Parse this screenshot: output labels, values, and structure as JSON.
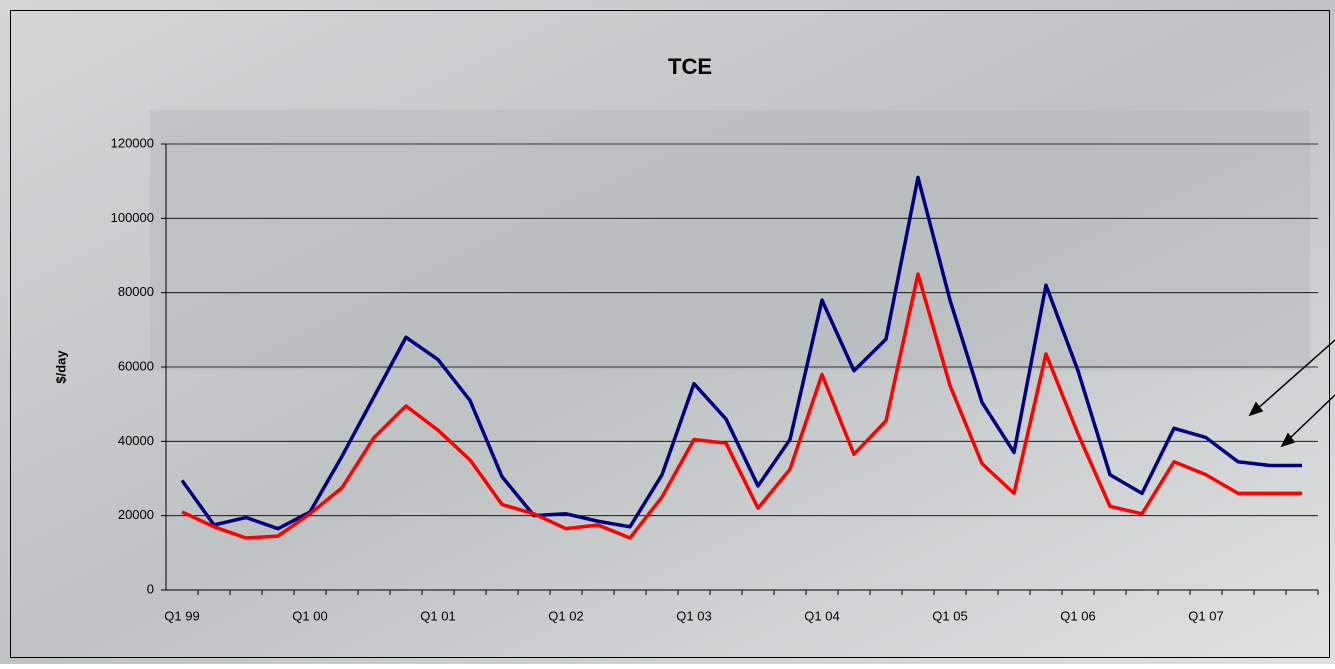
{
  "chart_data": {
    "type": "line",
    "title": "TCE",
    "y_label": "$/day",
    "categories": [
      "Q1 99",
      null,
      null,
      null,
      "Q1 00",
      null,
      null,
      null,
      "Q1 01",
      null,
      null,
      null,
      "Q1 02",
      null,
      null,
      null,
      "Q1 03",
      null,
      null,
      null,
      "Q1 04",
      null,
      null,
      null,
      "Q1 05",
      null,
      null,
      null,
      "Q1 06",
      null,
      null,
      null,
      "Q1 07",
      null,
      null,
      null
    ],
    "series": [
      {
        "color": "#000080",
        "values": [
          29500,
          17500,
          19500,
          16500,
          21000,
          36000,
          52000,
          68000,
          62000,
          51000,
          30500,
          20000,
          20500,
          18500,
          17000,
          31000,
          55500,
          46000,
          28000,
          40500,
          78000,
          59000,
          67500,
          111000,
          78000,
          50500,
          37000,
          82000,
          59000,
          31000,
          26000,
          43500,
          41000,
          34500,
          33500,
          33500
        ]
      },
      {
        "color": "#ff0000",
        "values": [
          21000,
          17000,
          14000,
          14500,
          20500,
          27500,
          41000,
          49500,
          43000,
          35000,
          23000,
          20500,
          16500,
          17500,
          14000,
          25000,
          40500,
          39500,
          22000,
          32500,
          58000,
          36500,
          45500,
          85000,
          55000,
          34000,
          26000,
          63500,
          42000,
          22500,
          20500,
          34500,
          31000,
          26000,
          26000,
          26000
        ]
      }
    ],
    "ylim": [
      0,
      120000
    ],
    "yticks": [
      0,
      20000,
      40000,
      60000,
      80000,
      100000,
      120000
    ],
    "grid": true
  }
}
